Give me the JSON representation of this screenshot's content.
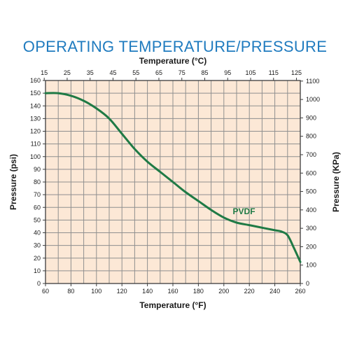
{
  "page": {
    "title": "OPERATING TEMPERATURE/PRESSURE"
  },
  "colors": {
    "title": "#1f7bbf",
    "plot_background": "#fce8d6",
    "grid": "#8f8f8f",
    "frame": "#3c3c3c",
    "curve": "#1f7a45",
    "text": "#1a1a1a"
  },
  "chart_data": {
    "type": "line",
    "title": "OPERATING TEMPERATURE/PRESSURE",
    "xlabel": "Temperature (°F)",
    "ylabel": "Pressure (psi)",
    "x2label": "Temperature (°C)",
    "y2label": "Pressure (KPa)",
    "xlim": [
      60,
      260
    ],
    "ylim": [
      0,
      160
    ],
    "xticks": [
      "60",
      "80",
      "100",
      "120",
      "140",
      "160",
      "180",
      "200",
      "220",
      "240",
      "260"
    ],
    "yticks": [
      "0",
      "10",
      "20",
      "30",
      "40",
      "50",
      "60",
      "70",
      "80",
      "90",
      "100",
      "110",
      "120",
      "130",
      "140",
      "150",
      "160"
    ],
    "x2ticks": [
      "15",
      "25",
      "35",
      "45",
      "55",
      "65",
      "75",
      "85",
      "95",
      "105",
      "115",
      "125"
    ],
    "y2ticks": [
      "0",
      "100",
      "200",
      "300",
      "400",
      "500",
      "600",
      "700",
      "800",
      "900",
      "1000",
      "1100"
    ],
    "grid": true,
    "series": [
      {
        "name": "PVDF",
        "x": [
          60,
          70,
          80,
          90,
          100,
          110,
          120,
          130,
          140,
          150,
          160,
          170,
          180,
          190,
          200,
          210,
          220,
          230,
          240,
          245,
          250,
          255,
          260
        ],
        "y": [
          150,
          150,
          148,
          144,
          138,
          130,
          118,
          106,
          96,
          88,
          80,
          72,
          65,
          58,
          52,
          48,
          46,
          44,
          42,
          41,
          38,
          28,
          17
        ]
      }
    ]
  }
}
